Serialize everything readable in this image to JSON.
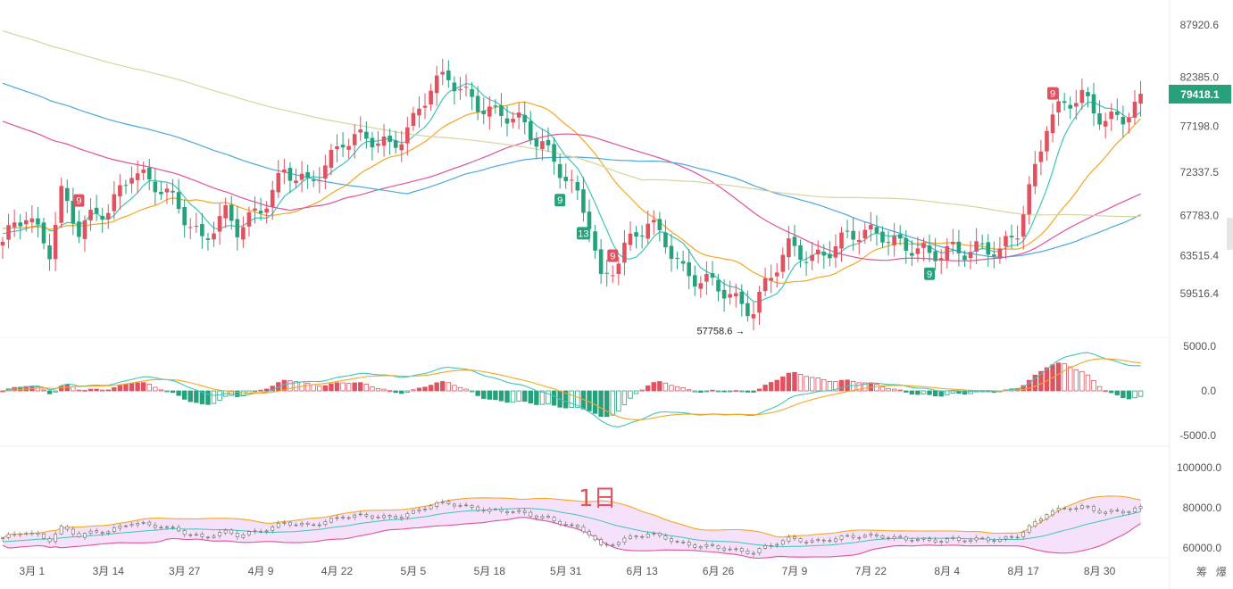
{
  "chart_data": {
    "type": "candlestick",
    "price_axis_ticks": [
      "87920.6",
      "82385.0",
      "77198.0",
      "72337.5",
      "67783.0",
      "63515.4",
      "59516.4"
    ],
    "macd_axis_ticks": [
      "5000.0",
      "0.0",
      "-5000.0"
    ],
    "bottom_axis_ticks": [
      "100000.0",
      "80000.0",
      "60000.0"
    ],
    "date_ticks": [
      "3月 1",
      "3月 14",
      "3月 27",
      "4月 9",
      "4月 22",
      "5月 5",
      "5月 18",
      "5月 31",
      "6月 13",
      "6月 26",
      "7月 9",
      "7月 22",
      "8月 4",
      "8月 17",
      "8月 30"
    ],
    "last_price": "79418.1",
    "low_marker_label": "57758.6 →",
    "signals": [
      {
        "label": "9",
        "color": "#e05260",
        "day": 13
      },
      {
        "label": "9",
        "color": "#26a17b",
        "day": 95
      },
      {
        "label": "13",
        "color": "#26a17b",
        "day": 99
      },
      {
        "label": "9",
        "color": "#e05260",
        "day": 104
      },
      {
        "label": "9",
        "color": "#26a17b",
        "day": 158
      },
      {
        "label": "9",
        "color": "#e05260",
        "day": 179
      }
    ],
    "timeframe_label": "1日",
    "corner_label": "筹 爆",
    "colors": {
      "up": "#e05260",
      "down": "#26a17b",
      "ma_orange": "#f5a623",
      "ma_teal": "#3ec6b8",
      "ma_blue": "#4aa8e0",
      "ma_pink": "#e0529c",
      "ma_beige": "#d9d3a0",
      "band_fill": "#f3d9f7"
    }
  }
}
